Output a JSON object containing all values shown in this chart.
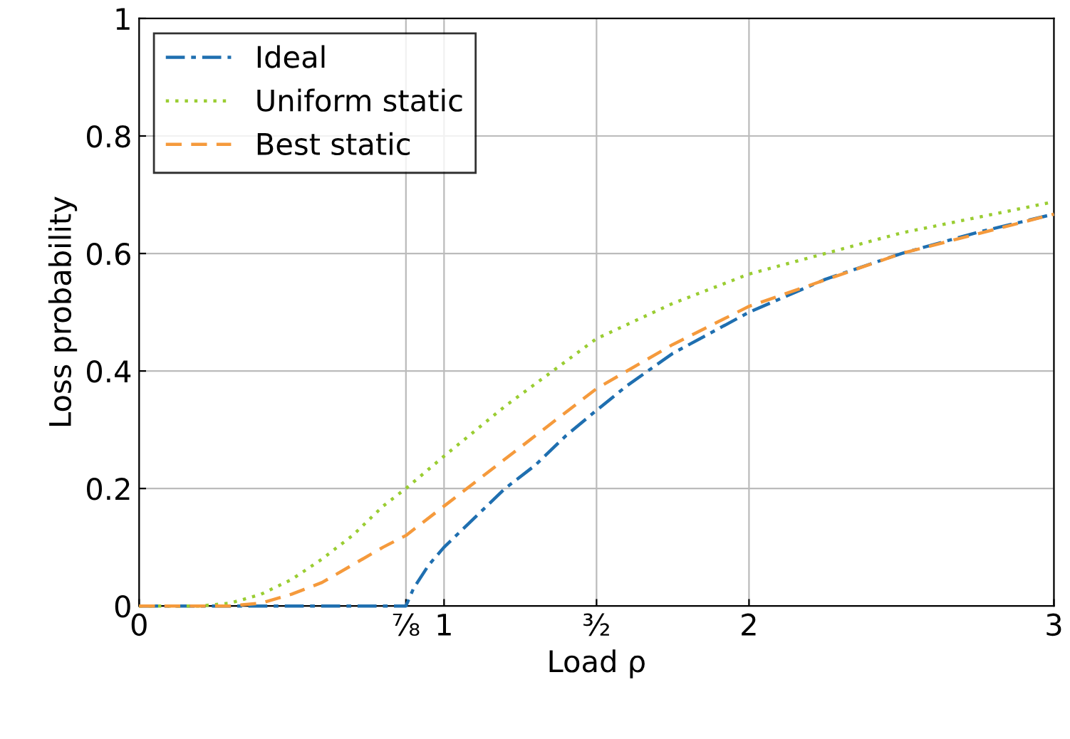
{
  "chart_data": {
    "type": "line",
    "xlabel": "Load ρ",
    "ylabel": "Loss probability",
    "xlim": [
      0,
      3
    ],
    "ylim": [
      0,
      1
    ],
    "xticks": [
      0,
      {
        "value": 0.875,
        "label": "⅞"
      },
      1,
      {
        "value": 1.5,
        "label": "³⁄₂"
      },
      2,
      3
    ],
    "yticks": [
      0,
      0.2,
      0.4,
      0.6,
      0.8,
      1
    ],
    "grid": true,
    "legend": "top left",
    "marker": "none",
    "series": [
      {
        "name": "Ideal",
        "color": "#1f6fb0",
        "line_style": "dashdot",
        "x": [
          0,
          0.875,
          0.9,
          0.95,
          1,
          1.1,
          1.2,
          1.3,
          1.4,
          1.5,
          1.6,
          1.75,
          2,
          2.25,
          2.5,
          2.75,
          3
        ],
        "values": [
          0,
          0,
          0.03,
          0.07,
          0.1,
          0.15,
          0.2,
          0.24,
          0.29,
          0.333,
          0.375,
          0.43,
          0.5,
          0.556,
          0.6,
          0.636,
          0.667
        ]
      },
      {
        "name": "Uniform static",
        "color": "#9acd32",
        "line_style": "dotted",
        "x": [
          0,
          0.2,
          0.3,
          0.4,
          0.5,
          0.6,
          0.7,
          0.8,
          0.875,
          1,
          1.2,
          1.5,
          1.75,
          2,
          2.5,
          3
        ],
        "values": [
          0,
          0,
          0.005,
          0.02,
          0.045,
          0.08,
          0.12,
          0.17,
          0.2,
          0.255,
          0.34,
          0.455,
          0.515,
          0.565,
          0.635,
          0.688
        ]
      },
      {
        "name": "Best static",
        "color": "#f59a3c",
        "line_style": "dashed",
        "x": [
          0,
          0.3,
          0.4,
          0.5,
          0.6,
          0.7,
          0.8,
          0.875,
          1,
          1.2,
          1.5,
          1.75,
          2,
          2.5,
          3
        ],
        "values": [
          0,
          0,
          0.005,
          0.02,
          0.04,
          0.07,
          0.1,
          0.12,
          0.17,
          0.25,
          0.37,
          0.445,
          0.51,
          0.6,
          0.667
        ]
      }
    ]
  }
}
